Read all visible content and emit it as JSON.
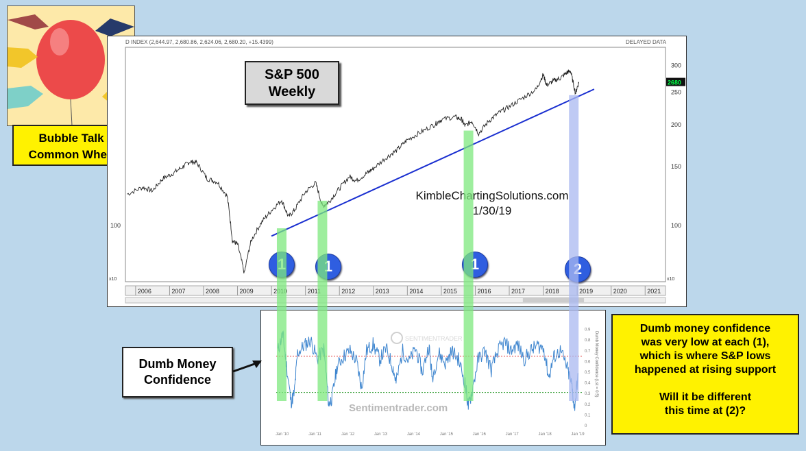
{
  "colors": {
    "background": "#bcd7eb",
    "price_line": "#222222",
    "support_line": "#1a2fd0",
    "highlight_green": "#7ee87e",
    "highlight_blue": "#aab8f0",
    "marker_blue": "#2f5ee0",
    "dmc_line": "#3f86cf",
    "callout_yellow": "#fff200",
    "upper_threshold": "#e03030",
    "lower_threshold": "#2a9a2a"
  },
  "main_chart": {
    "header_left": "D INDEX (2,644.97, 2,680.86, 2,624.06, 2,680.20, +15.4399)",
    "header_right": "DELAYED DATA",
    "title_line1": "S&P 500",
    "title_line2": "Weekly",
    "watermark_line1": "KimbleChartingSolutions.com",
    "watermark_line2": "1/30/19",
    "last_price_badge": "2680",
    "x10_label": "x10",
    "x10_label_right": "x10"
  },
  "thumbnail": {
    "icon": "balloon-pins-icon",
    "caption_line1": "Bubble Talk",
    "caption_line2": "Common When"
  },
  "markers": [
    {
      "label": "1",
      "year": 2010.3
    },
    {
      "label": "1",
      "year": 2011.5
    },
    {
      "label": "1",
      "year": 2015.8
    },
    {
      "label": "2",
      "year": 2018.9
    }
  ],
  "dmc_label": {
    "line1": "Dumb Money",
    "line2": "Confidence"
  },
  "sub_chart": {
    "watermark": "Sentimentrader.com",
    "logo_text": "SENTIMENTRADER",
    "right_axis_title": "Dumb Money Confidence (Lst = 0.5)",
    "x_ticks": [
      "Jan '10",
      "Jan '11",
      "Jan '12",
      "Jan '13",
      "Jan '14",
      "Jan '15",
      "Jan '16",
      "Jan '17",
      "Jan '18",
      "Jan '19"
    ],
    "y_ticks": [
      "0.9",
      "0.8",
      "0.7",
      "0.6",
      "0.5",
      "0.4",
      "0.3",
      "0.2",
      "0.1",
      "0"
    ]
  },
  "note": {
    "line1": "Dumb money confidence",
    "line2": "was very low at each (1),",
    "line3": "which is where S&P lows",
    "line4": "happened at rising support",
    "line5": "Will it be different",
    "line6": "this time at (2)?"
  },
  "chart_data": [
    {
      "type": "line",
      "title": "S&P 500 Weekly",
      "scale": "log",
      "x_range": [
        2005.7,
        2021.6
      ],
      "y_ticks": [
        100,
        150,
        200,
        250,
        300
      ],
      "y_tick_multiplier": "x10",
      "x_ticks": [
        "2006",
        "2007",
        "2008",
        "2009",
        "2010",
        "2011",
        "2012",
        "2013",
        "2014",
        "2015",
        "2016",
        "2017",
        "2018",
        "2019",
        "2020",
        "2021"
      ],
      "series": [
        {
          "x": [
            2005.75,
            2006.2,
            2006.5,
            2006.8,
            2007.1,
            2007.4,
            2007.6,
            2007.8,
            2008.1,
            2008.4,
            2008.7,
            2008.85,
            2009.0,
            2009.2,
            2009.4,
            2009.7,
            2010.0,
            2010.3,
            2010.5,
            2010.7,
            2011.0,
            2011.3,
            2011.5,
            2011.7,
            2012.0,
            2012.3,
            2012.5,
            2012.8,
            2013.0,
            2013.4,
            2013.7,
            2014.0,
            2014.4,
            2014.8,
            2015.0,
            2015.4,
            2015.6,
            2015.7,
            2015.9,
            2016.1,
            2016.4,
            2016.7,
            2017.0,
            2017.4,
            2017.8,
            2018.0,
            2018.1,
            2018.3,
            2018.5,
            2018.7,
            2018.8,
            2018.95,
            2019.05
          ],
          "y": [
            124,
            130,
            127,
            138,
            143,
            150,
            155,
            154,
            138,
            135,
            122,
            90,
            88,
            72,
            90,
            102,
            111,
            119,
            106,
            112,
            126,
            134,
            114,
            118,
            129,
            140,
            136,
            143,
            148,
            160,
            168,
            180,
            190,
            200,
            207,
            211,
            207,
            198,
            205,
            188,
            205,
            217,
            226,
            240,
            255,
            282,
            262,
            270,
            275,
            286,
            289,
            248,
            268
          ]
        }
      ],
      "support_line": {
        "from": [
          2010.0,
          93
        ],
        "to": [
          2019.5,
          255
        ]
      },
      "highlights": [
        {
          "year": 2010.3,
          "color": "green"
        },
        {
          "year": 2011.5,
          "color": "green"
        },
        {
          "year": 2015.8,
          "color": "green"
        },
        {
          "year": 2018.9,
          "color": "blue"
        }
      ]
    },
    {
      "type": "line",
      "title": "Dumb Money Confidence",
      "y_range": [
        0,
        1
      ],
      "upper_threshold": 0.65,
      "lower_threshold": 0.31,
      "series": [
        {
          "x": [
            2009.9,
            2010.05,
            2010.15,
            2010.3,
            2010.4,
            2010.5,
            2010.7,
            2010.9,
            2011.1,
            2011.3,
            2011.45,
            2011.55,
            2011.7,
            2011.9,
            2012.1,
            2012.3,
            2012.45,
            2012.6,
            2012.8,
            2013.0,
            2013.2,
            2013.4,
            2013.5,
            2013.7,
            2013.9,
            2014.1,
            2014.3,
            2014.5,
            2014.6,
            2014.8,
            2015.0,
            2015.2,
            2015.4,
            2015.6,
            2015.7,
            2015.8,
            2016.0,
            2016.2,
            2016.4,
            2016.6,
            2016.8,
            2017.0,
            2017.2,
            2017.4,
            2017.6,
            2017.8,
            2018.0,
            2018.15,
            2018.3,
            2018.5,
            2018.7,
            2018.85,
            2018.93,
            2019.05
          ],
          "y": [
            0.7,
            0.86,
            0.6,
            0.22,
            0.3,
            0.68,
            0.75,
            0.8,
            0.62,
            0.72,
            0.2,
            0.26,
            0.55,
            0.65,
            0.7,
            0.6,
            0.35,
            0.7,
            0.76,
            0.62,
            0.72,
            0.55,
            0.4,
            0.7,
            0.6,
            0.72,
            0.5,
            0.75,
            0.45,
            0.68,
            0.58,
            0.7,
            0.62,
            0.4,
            0.18,
            0.3,
            0.62,
            0.7,
            0.52,
            0.7,
            0.78,
            0.7,
            0.76,
            0.62,
            0.7,
            0.75,
            0.72,
            0.45,
            0.64,
            0.7,
            0.55,
            0.38,
            0.16,
            0.5
          ]
        }
      ]
    }
  ]
}
